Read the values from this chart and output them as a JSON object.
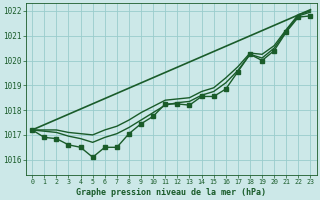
{
  "title": "Graphe pression niveau de la mer (hPa)",
  "bg_color": "#cce8e8",
  "grid_color": "#99cccc",
  "line_color": "#1a5c2a",
  "xlim": [
    -0.5,
    23.5
  ],
  "ylim": [
    1015.4,
    1022.3
  ],
  "yticks": [
    1016,
    1017,
    1018,
    1019,
    1020,
    1021,
    1022
  ],
  "xticks": [
    0,
    1,
    2,
    3,
    4,
    5,
    6,
    7,
    8,
    9,
    10,
    11,
    12,
    13,
    14,
    15,
    16,
    17,
    18,
    19,
    20,
    21,
    22,
    23
  ],
  "series": [
    {
      "x": [
        0,
        1,
        2,
        3,
        4,
        5,
        6,
        7,
        8,
        9,
        10,
        11,
        12,
        13,
        14,
        15,
        16,
        17,
        18,
        19,
        20,
        21,
        22,
        23
      ],
      "y": [
        1017.2,
        1016.9,
        1016.85,
        1016.6,
        1016.5,
        1016.1,
        1016.5,
        1016.5,
        1017.05,
        1017.45,
        1017.75,
        1018.25,
        1018.25,
        1018.2,
        1018.55,
        1018.55,
        1018.85,
        1019.55,
        1020.25,
        1020.0,
        1020.4,
        1021.15,
        1021.75,
        1021.8
      ],
      "marker": "s",
      "markersize": 2.2,
      "linewidth": 1.0
    },
    {
      "x": [
        0,
        1,
        2,
        3,
        4,
        5,
        6,
        7,
        8,
        9,
        10,
        11,
        12,
        13,
        14,
        15,
        16,
        17,
        18,
        19,
        20,
        21,
        22,
        23
      ],
      "y": [
        1017.2,
        1017.2,
        1017.2,
        1017.1,
        1017.05,
        1017.0,
        1017.2,
        1017.35,
        1017.6,
        1017.9,
        1018.15,
        1018.4,
        1018.45,
        1018.5,
        1018.75,
        1018.9,
        1019.3,
        1019.75,
        1020.3,
        1020.25,
        1020.6,
        1021.25,
        1021.85,
        1022.0
      ],
      "marker": null,
      "linewidth": 1.0
    },
    {
      "x": [
        0,
        1,
        2,
        3,
        4,
        5,
        6,
        7,
        8,
        9,
        10,
        11,
        12,
        13,
        14,
        15,
        16,
        17,
        18,
        19,
        20,
        21,
        22,
        23
      ],
      "y": [
        1017.2,
        1017.15,
        1017.1,
        1016.95,
        1016.85,
        1016.7,
        1016.9,
        1017.05,
        1017.3,
        1017.6,
        1017.9,
        1018.2,
        1018.3,
        1018.35,
        1018.6,
        1018.75,
        1019.1,
        1019.6,
        1020.25,
        1020.1,
        1020.5,
        1021.2,
        1021.8,
        1021.95
      ],
      "marker": null,
      "linewidth": 1.0
    },
    {
      "x": [
        0,
        23
      ],
      "y": [
        1017.2,
        1022.05
      ],
      "marker": null,
      "linewidth": 1.2
    }
  ]
}
